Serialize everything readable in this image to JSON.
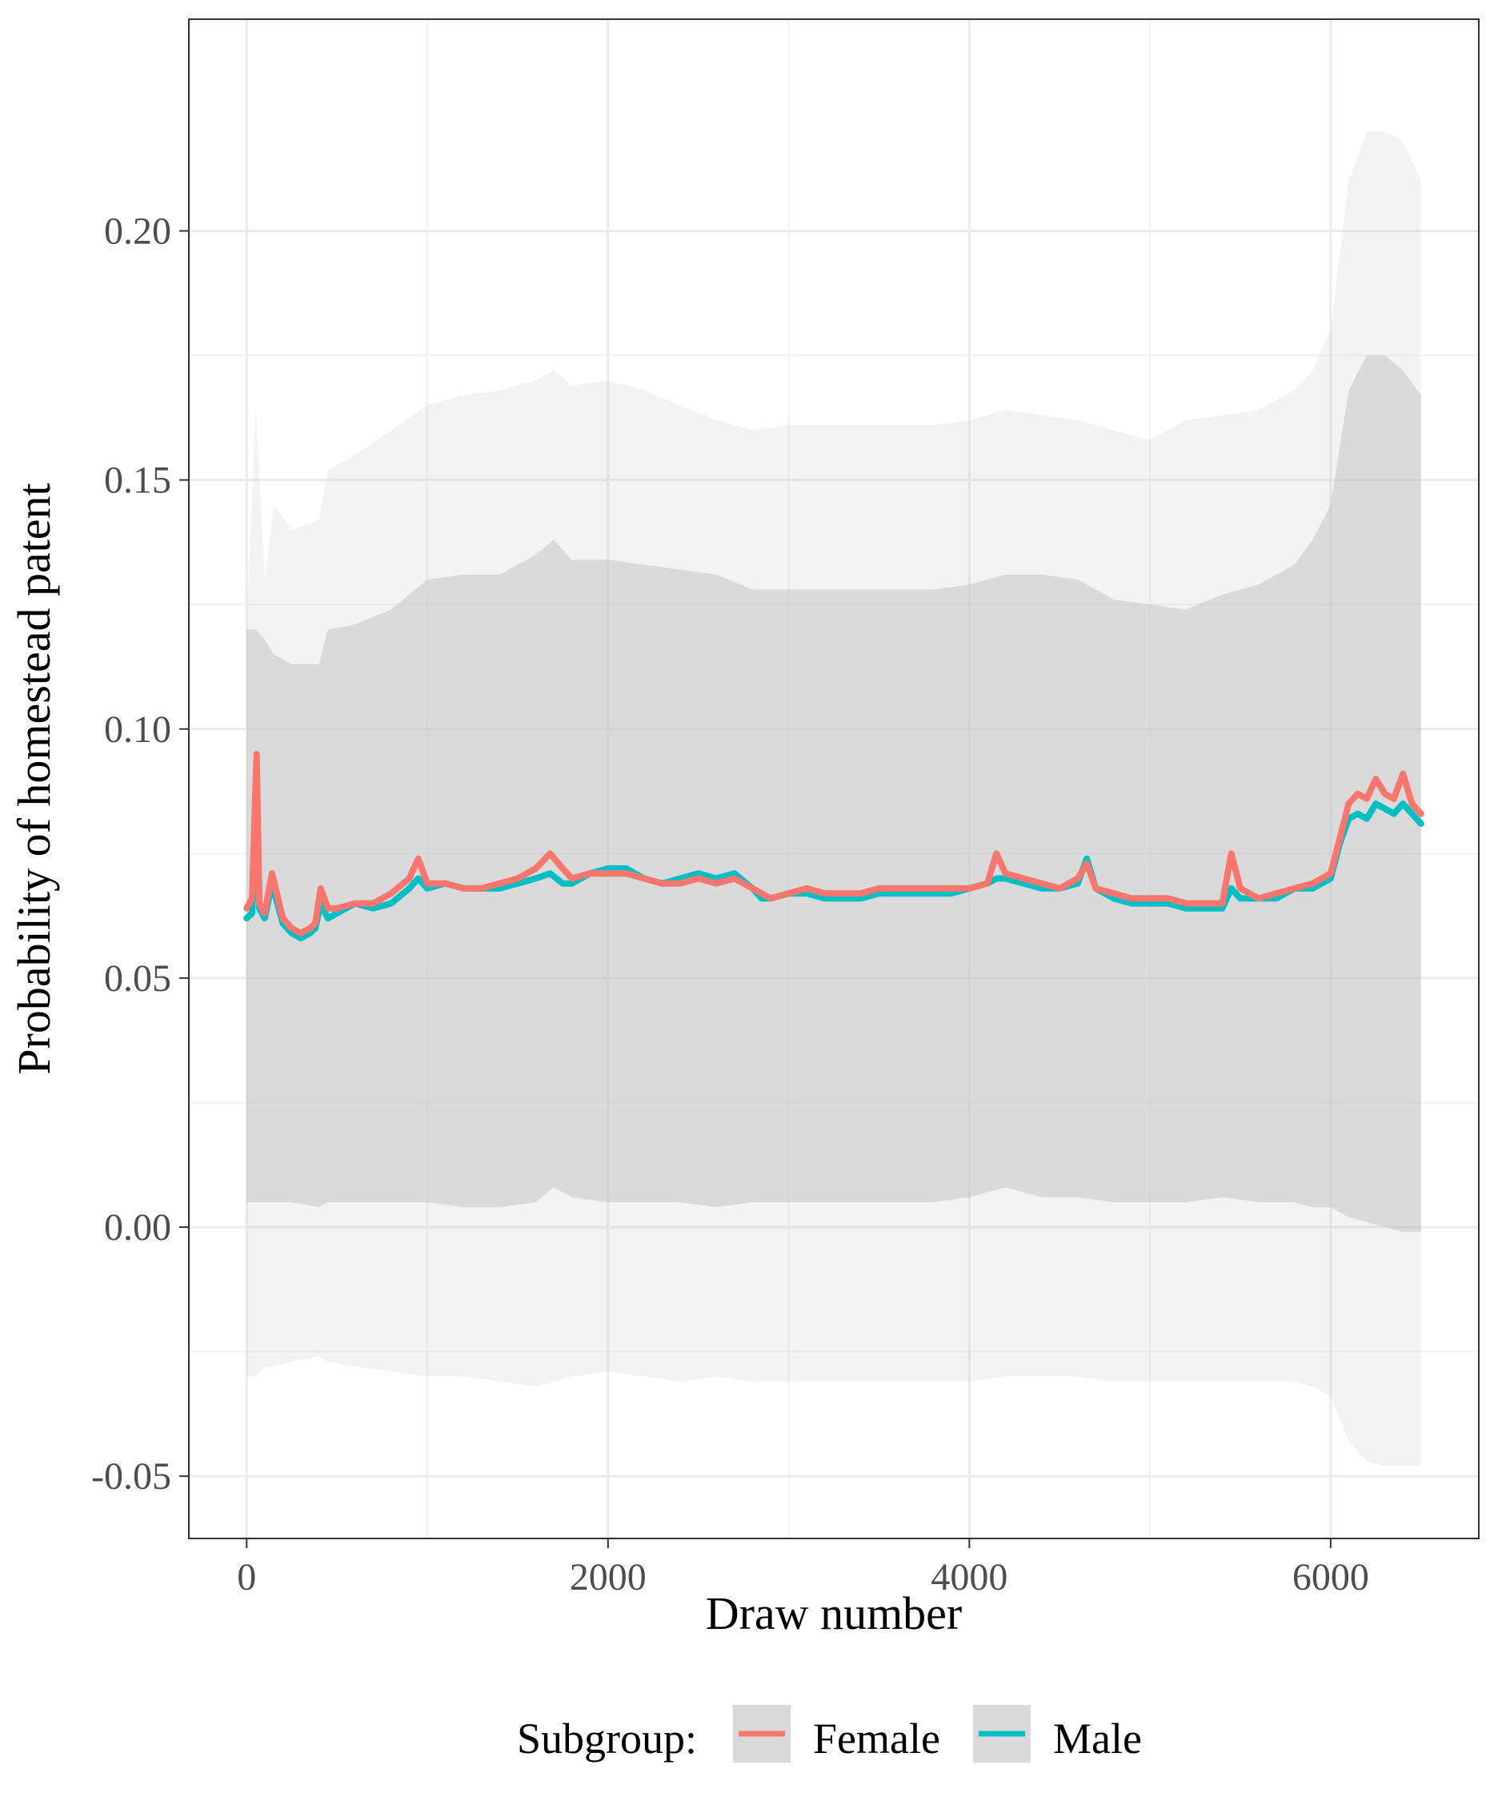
{
  "chart_data": {
    "type": "line",
    "title": "",
    "xlabel": "Draw number",
    "ylabel": "Probability of homestead patent",
    "xlim": [
      -320,
      6820
    ],
    "ylim": [
      -0.0625,
      0.2425
    ],
    "x_ticks": [
      0,
      2000,
      4000,
      6000
    ],
    "x_tick_labels": [
      "0",
      "2000",
      "4000",
      "6000"
    ],
    "y_ticks": [
      -0.05,
      0,
      0.05,
      0.1,
      0.15,
      0.2
    ],
    "y_tick_labels": [
      "-0.05",
      "0.00",
      "0.05",
      "0.10",
      "0.15",
      "0.20"
    ],
    "grid": true,
    "legend": {
      "position": "bottom",
      "title": "Subgroup:",
      "entries": [
        "Female",
        "Male"
      ]
    },
    "colors": {
      "Female": "#F8766D",
      "Male": "#00BFC4",
      "band": "#bdbdbd"
    },
    "series": [
      {
        "name": "Female",
        "x": [
          0,
          30,
          55,
          70,
          100,
          140,
          200,
          250,
          300,
          350,
          380,
          410,
          450,
          500,
          600,
          700,
          800,
          900,
          950,
          1000,
          1100,
          1200,
          1300,
          1400,
          1500,
          1600,
          1680,
          1750,
          1800,
          1900,
          2000,
          2100,
          2200,
          2300,
          2400,
          2500,
          2600,
          2700,
          2800,
          2850,
          2900,
          3000,
          3100,
          3200,
          3300,
          3400,
          3500,
          3600,
          3700,
          3800,
          3900,
          4000,
          4100,
          4150,
          4200,
          4300,
          4400,
          4500,
          4600,
          4650,
          4700,
          4800,
          4900,
          5000,
          5100,
          5200,
          5300,
          5400,
          5450,
          5500,
          5600,
          5700,
          5800,
          5900,
          6000,
          6050,
          6100,
          6150,
          6200,
          6250,
          6300,
          6350,
          6400,
          6450,
          6500
        ],
        "values": [
          0.064,
          0.066,
          0.095,
          0.065,
          0.063,
          0.071,
          0.062,
          0.06,
          0.059,
          0.06,
          0.061,
          0.068,
          0.064,
          0.064,
          0.065,
          0.065,
          0.067,
          0.07,
          0.074,
          0.069,
          0.069,
          0.068,
          0.068,
          0.069,
          0.07,
          0.072,
          0.075,
          0.072,
          0.07,
          0.071,
          0.071,
          0.071,
          0.07,
          0.069,
          0.069,
          0.07,
          0.069,
          0.07,
          0.068,
          0.067,
          0.066,
          0.067,
          0.068,
          0.067,
          0.067,
          0.067,
          0.068,
          0.068,
          0.068,
          0.068,
          0.068,
          0.068,
          0.069,
          0.075,
          0.071,
          0.07,
          0.069,
          0.068,
          0.07,
          0.073,
          0.068,
          0.067,
          0.066,
          0.066,
          0.066,
          0.065,
          0.065,
          0.065,
          0.075,
          0.068,
          0.066,
          0.067,
          0.068,
          0.069,
          0.071,
          0.078,
          0.085,
          0.087,
          0.086,
          0.09,
          0.087,
          0.086,
          0.091,
          0.085,
          0.083
        ]
      },
      {
        "name": "Male",
        "x": [
          0,
          30,
          55,
          70,
          100,
          140,
          200,
          250,
          300,
          350,
          380,
          410,
          450,
          500,
          600,
          700,
          800,
          900,
          950,
          1000,
          1100,
          1200,
          1300,
          1400,
          1500,
          1600,
          1680,
          1750,
          1800,
          1900,
          2000,
          2100,
          2200,
          2300,
          2400,
          2500,
          2600,
          2700,
          2800,
          2850,
          2900,
          3000,
          3100,
          3200,
          3300,
          3400,
          3500,
          3600,
          3700,
          3800,
          3900,
          4000,
          4100,
          4150,
          4200,
          4300,
          4400,
          4500,
          4600,
          4650,
          4700,
          4800,
          4900,
          5000,
          5100,
          5200,
          5300,
          5400,
          5450,
          5500,
          5600,
          5700,
          5800,
          5900,
          6000,
          6050,
          6100,
          6150,
          6200,
          6250,
          6300,
          6350,
          6400,
          6450,
          6500
        ],
        "values": [
          0.062,
          0.063,
          0.086,
          0.064,
          0.062,
          0.069,
          0.061,
          0.059,
          0.058,
          0.059,
          0.06,
          0.065,
          0.062,
          0.063,
          0.065,
          0.064,
          0.065,
          0.068,
          0.07,
          0.068,
          0.069,
          0.068,
          0.068,
          0.068,
          0.069,
          0.07,
          0.071,
          0.069,
          0.069,
          0.071,
          0.072,
          0.072,
          0.07,
          0.069,
          0.07,
          0.071,
          0.07,
          0.071,
          0.068,
          0.066,
          0.066,
          0.067,
          0.067,
          0.066,
          0.066,
          0.066,
          0.067,
          0.067,
          0.067,
          0.067,
          0.067,
          0.068,
          0.069,
          0.07,
          0.07,
          0.069,
          0.068,
          0.068,
          0.069,
          0.074,
          0.068,
          0.066,
          0.065,
          0.065,
          0.065,
          0.064,
          0.064,
          0.064,
          0.068,
          0.066,
          0.066,
          0.066,
          0.068,
          0.068,
          0.07,
          0.077,
          0.082,
          0.083,
          0.082,
          0.085,
          0.084,
          0.083,
          0.085,
          0.083,
          0.081
        ]
      }
    ],
    "interval_bands": [
      {
        "name": "outer",
        "x": [
          0,
          50,
          100,
          150,
          250,
          400,
          450,
          600,
          800,
          1000,
          1200,
          1400,
          1600,
          1700,
          1800,
          2000,
          2200,
          2400,
          2600,
          2800,
          3000,
          3200,
          3400,
          3600,
          3800,
          4000,
          4200,
          4400,
          4600,
          4800,
          5000,
          5200,
          5400,
          5600,
          5800,
          5900,
          6000,
          6100,
          6200,
          6300,
          6400,
          6500
        ],
        "lower": [
          -0.03,
          -0.03,
          -0.028,
          -0.028,
          -0.027,
          -0.026,
          -0.027,
          -0.028,
          -0.029,
          -0.03,
          -0.03,
          -0.031,
          -0.032,
          -0.031,
          -0.03,
          -0.029,
          -0.03,
          -0.031,
          -0.03,
          -0.031,
          -0.031,
          -0.031,
          -0.031,
          -0.031,
          -0.031,
          -0.031,
          -0.03,
          -0.03,
          -0.03,
          -0.031,
          -0.031,
          -0.031,
          -0.031,
          -0.031,
          -0.031,
          -0.032,
          -0.034,
          -0.043,
          -0.047,
          -0.048,
          -0.048,
          -0.048
        ],
        "upper": [
          0.12,
          0.165,
          0.13,
          0.145,
          0.14,
          0.142,
          0.152,
          0.155,
          0.16,
          0.165,
          0.167,
          0.168,
          0.17,
          0.172,
          0.169,
          0.17,
          0.168,
          0.165,
          0.162,
          0.16,
          0.161,
          0.161,
          0.161,
          0.161,
          0.161,
          0.162,
          0.164,
          0.163,
          0.162,
          0.16,
          0.158,
          0.162,
          0.163,
          0.164,
          0.168,
          0.172,
          0.18,
          0.21,
          0.22,
          0.22,
          0.218,
          0.21
        ]
      },
      {
        "name": "inner",
        "x": [
          0,
          50,
          100,
          150,
          250,
          400,
          450,
          600,
          800,
          1000,
          1200,
          1400,
          1600,
          1700,
          1800,
          2000,
          2200,
          2400,
          2600,
          2800,
          3000,
          3200,
          3400,
          3600,
          3800,
          4000,
          4200,
          4400,
          4600,
          4800,
          5000,
          5200,
          5400,
          5600,
          5800,
          5900,
          6000,
          6100,
          6200,
          6300,
          6400,
          6500
        ],
        "lower": [
          0.005,
          0.005,
          0.005,
          0.005,
          0.005,
          0.004,
          0.005,
          0.005,
          0.005,
          0.005,
          0.004,
          0.004,
          0.005,
          0.008,
          0.006,
          0.005,
          0.005,
          0.005,
          0.004,
          0.005,
          0.005,
          0.005,
          0.005,
          0.005,
          0.005,
          0.006,
          0.008,
          0.006,
          0.006,
          0.005,
          0.005,
          0.005,
          0.006,
          0.005,
          0.005,
          0.004,
          0.004,
          0.002,
          0.001,
          0.0,
          -0.001,
          -0.001
        ],
        "upper": [
          0.12,
          0.12,
          0.118,
          0.115,
          0.113,
          0.113,
          0.12,
          0.121,
          0.124,
          0.13,
          0.131,
          0.131,
          0.135,
          0.138,
          0.134,
          0.134,
          0.133,
          0.132,
          0.131,
          0.128,
          0.128,
          0.128,
          0.128,
          0.128,
          0.128,
          0.129,
          0.131,
          0.131,
          0.13,
          0.126,
          0.125,
          0.124,
          0.127,
          0.129,
          0.133,
          0.138,
          0.145,
          0.168,
          0.175,
          0.175,
          0.172,
          0.167
        ]
      }
    ]
  }
}
